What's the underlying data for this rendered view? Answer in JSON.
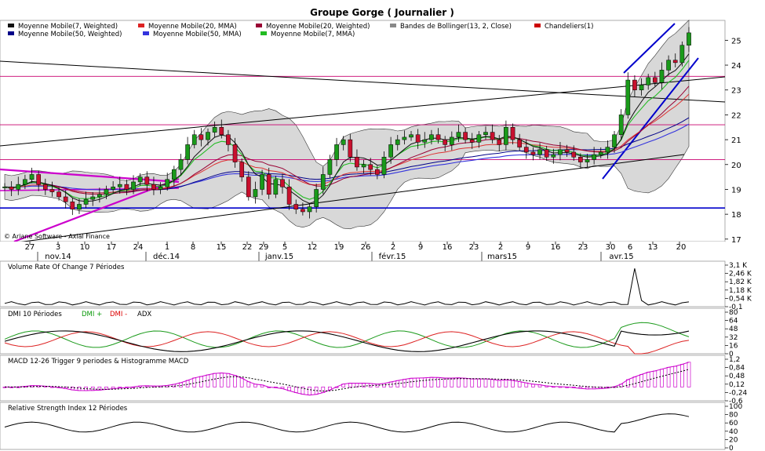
{
  "title": "Groupe Gorge  ( Journalier )",
  "watermark": "© Ariane Software - Axial Finance",
  "colors": {
    "background": "#ffffff",
    "panel_bg": "#f0f0f0",
    "candle_up": "#1a9a1a",
    "candle_down": "#c8102e",
    "bollinger_fill": "#c8c8c8",
    "support_line": "#0000cc",
    "trend_line": "#000000",
    "magenta": "#cc00cc",
    "mma50": "#3333dd",
    "mma20": "#dd3333",
    "mmw20": "#990033",
    "mma7": "#22bb22",
    "mmw7": "#111111",
    "horizontal_level": "#c8006e"
  },
  "legend": [
    {
      "label": "Moyenne Mobile(7, Weighted)",
      "color": "#111111"
    },
    {
      "label": "Moyenne Mobile(20, MMA)",
      "color": "#dd2222"
    },
    {
      "label": "Moyenne Mobile(20, Weighted)",
      "color": "#990033"
    },
    {
      "label": "Bandes de Bollinger(13, 2, Close)",
      "color": "#888888"
    },
    {
      "label": "Chandeliers(1)",
      "color": "#cc0000"
    },
    {
      "label": "Moyenne Mobile(50, Weighted)",
      "color": "#000088"
    },
    {
      "label": "Moyenne Mobile(50, MMA)",
      "color": "#3333dd"
    },
    {
      "label": "Moyenne Mobile(7, MMA)",
      "color": "#22bb22"
    }
  ],
  "x_axis": {
    "day_labels": [
      "27",
      "3",
      "10",
      "17",
      "24",
      "1",
      "8",
      "15",
      "22",
      "29",
      "5",
      "12",
      "19",
      "26",
      "2",
      "9",
      "16",
      "23",
      "2",
      "9",
      "16",
      "23",
      "30",
      "6",
      "13",
      "20"
    ],
    "month_labels": [
      "nov.14",
      "déc.14",
      "janv.15",
      "févr.15",
      "mars15",
      "avr.15"
    ]
  },
  "panels": {
    "volume": {
      "title": "Volume Rate Of Change 7 Périodes",
      "ticks": [
        "3,1 K",
        "2,46 K",
        "1,82 K",
        "1,18 K",
        "0,54 K",
        "-0,1"
      ]
    },
    "dmi": {
      "title": "DMI 10 Périodes",
      "dmi_plus": "DMI +",
      "dmi_minus": "DMI -",
      "adx": "ADX",
      "ticks": [
        "80",
        "64",
        "48",
        "32",
        "16",
        "0"
      ]
    },
    "macd": {
      "title": "MACD 12-26  Trigger 9 periodes & Histogramme MACD",
      "ticks": [
        "1,2",
        "0,84",
        "0,48",
        "0,12",
        "-0,24",
        "-0,6"
      ]
    },
    "rsi": {
      "title": "Relative Strength Index 12 Périodes",
      "ticks": [
        "100",
        "80",
        "60",
        "40",
        "20",
        "0"
      ]
    }
  },
  "chart_data": {
    "type": "candlestick",
    "title": "Groupe Gorge  ( Journalier )",
    "y_ticks": [
      25,
      24,
      23,
      22,
      21,
      20,
      19,
      18,
      17
    ],
    "ylim": [
      16.9,
      25.8
    ],
    "horizontal_levels": [
      23.55,
      21.6,
      20.2,
      18.25
    ],
    "closes": [
      19.1,
      19.0,
      19.2,
      19.4,
      19.6,
      19.2,
      19.0,
      18.9,
      18.7,
      18.5,
      18.2,
      18.4,
      18.6,
      18.7,
      18.8,
      19.0,
      19.1,
      19.2,
      19.0,
      19.3,
      19.5,
      19.2,
      19.0,
      19.1,
      19.4,
      19.8,
      20.2,
      20.8,
      21.2,
      21.0,
      21.3,
      21.5,
      21.2,
      20.8,
      20.1,
      19.5,
      18.7,
      19.0,
      19.6,
      18.8,
      19.4,
      19.1,
      18.4,
      18.2,
      18.1,
      18.3,
      19.0,
      19.6,
      20.2,
      20.8,
      21.0,
      20.3,
      19.9,
      20.0,
      19.8,
      19.6,
      20.3,
      20.8,
      21.0,
      21.1,
      21.2,
      20.9,
      21.0,
      21.2,
      21.0,
      20.8,
      21.1,
      21.3,
      21.0,
      20.9,
      21.2,
      21.3,
      21.0,
      20.8,
      21.5,
      21.0,
      20.7,
      20.5,
      20.4,
      20.6,
      20.3,
      20.4,
      20.6,
      20.5,
      20.3,
      20.1,
      20.2,
      20.4,
      20.5,
      20.7,
      21.2,
      22.0,
      23.4,
      23.0,
      23.2,
      23.5,
      23.3,
      23.8,
      24.2,
      24.1,
      24.8,
      25.3
    ]
  }
}
